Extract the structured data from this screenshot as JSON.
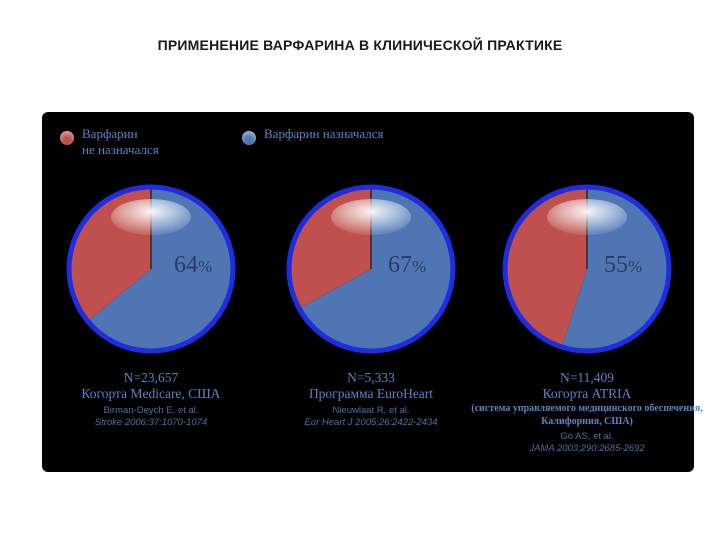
{
  "page": {
    "title": "ПРИМЕНЕНИЕ ВАРФАРИНА  В КЛИНИЧЕСКОЙ ПРАКТИКЕ"
  },
  "legend": {
    "not_prescribed": "Варфарин\nне назначался",
    "prescribed": "Варфарин назначался"
  },
  "colors": {
    "not_prescribed": "#c0504d",
    "prescribed": "#4f75b3",
    "ring": "#1e2de0",
    "panel": "#000000"
  },
  "chart_data": [
    {
      "type": "pie",
      "title": "",
      "percent_label": "64",
      "percent_sign": "%",
      "slices": [
        {
          "name": "Варфарин назначался",
          "value": 64
        },
        {
          "name": "Варфарин не назначался",
          "value": 36
        }
      ],
      "n_label": "N=23,657",
      "cohort": "Когорта Medicare, США",
      "subtitle": "",
      "ref_author": "Birman-Deych E, et al.",
      "ref_journal": "Stroke 2006;37:1070-1074"
    },
    {
      "type": "pie",
      "title": "",
      "percent_label": "67",
      "percent_sign": "%",
      "slices": [
        {
          "name": "Варфарин назначался",
          "value": 67
        },
        {
          "name": "Варфарин не назначался",
          "value": 33
        }
      ],
      "n_label": "N=5,333",
      "cohort": "Программа EuroHeart",
      "subtitle": "",
      "ref_author": "Nieuwlaat R, et al.",
      "ref_journal": "Eur Heart J 2005;26:2422-2434"
    },
    {
      "type": "pie",
      "title": "",
      "percent_label": "55",
      "percent_sign": "%",
      "slices": [
        {
          "name": "Варфарин назначался",
          "value": 55
        },
        {
          "name": "Варфарин не назначался",
          "value": 45
        }
      ],
      "n_label": "N=11,409",
      "cohort": "Когорта ATRIA",
      "subtitle": "(система управляемого медицинского обеспечения, Калифорния, США)",
      "ref_author": "Go AS, et al.",
      "ref_journal": "JAMA 2003;290:2685-2692"
    }
  ]
}
